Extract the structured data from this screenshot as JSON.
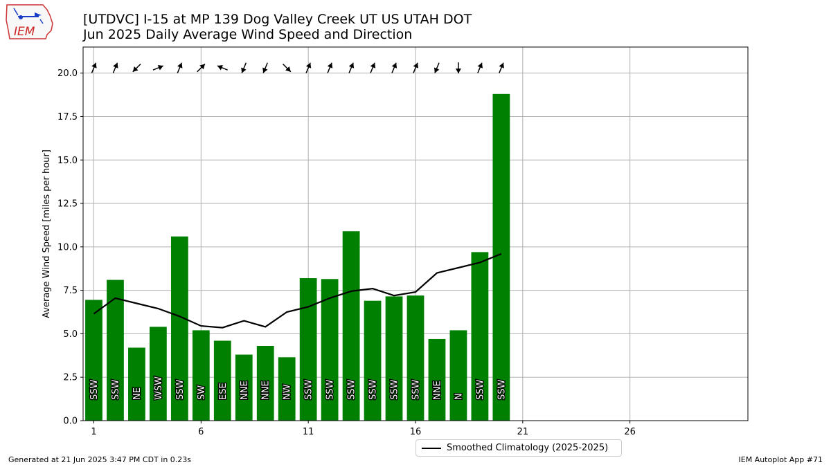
{
  "title_line1": "[UTDVC] I-15 at MP 139 Dog Valley Creek  UT US UTAH DOT",
  "title_line2": "Jun 2025 Daily Average Wind Speed and Direction",
  "logo_text": "IEM",
  "footer_left": "Generated at 21 Jun 2025 3:47 PM CDT in 0.23s",
  "footer_right": "IEM Autoplot App #71",
  "legend_label": "Smoothed Climatology (2025-2025)",
  "colors": {
    "bar": "#008000",
    "line": "#000000",
    "grid": "#b0b0b0"
  },
  "chart_data": {
    "type": "bar",
    "ylabel": "Average Wind Speed [miles per hour]",
    "xlabel": "",
    "xlim": [
      0.5,
      31.5
    ],
    "ylim": [
      0,
      21.5
    ],
    "xticks": [
      1,
      6,
      11,
      16,
      21,
      26
    ],
    "yticks": [
      0.0,
      2.5,
      5.0,
      7.5,
      10.0,
      12.5,
      15.0,
      17.5,
      20.0
    ],
    "grid": true,
    "legend_position": "lower-center",
    "days": [
      1,
      2,
      3,
      4,
      5,
      6,
      7,
      8,
      9,
      10,
      11,
      12,
      13,
      14,
      15,
      16,
      17,
      18,
      19,
      20
    ],
    "speed": [
      6.95,
      8.1,
      4.2,
      5.4,
      10.6,
      5.2,
      4.6,
      3.8,
      4.3,
      3.65,
      8.2,
      8.15,
      10.9,
      6.9,
      7.15,
      7.2,
      4.7,
      5.2,
      9.7,
      18.8
    ],
    "direction": [
      "SSW",
      "SSW",
      "NE",
      "WSW",
      "SSW",
      "SW",
      "ESE",
      "NNE",
      "NNE",
      "NW",
      "SSW",
      "SSW",
      "SSW",
      "SSW",
      "SSW",
      "SSW",
      "NNE",
      "N",
      "SSW",
      "SSW"
    ],
    "series": [
      {
        "name": "Smoothed Climatology (2025-2025)",
        "type": "line",
        "values": [
          6.15,
          7.05,
          6.75,
          6.45,
          6.0,
          5.45,
          5.35,
          5.75,
          5.4,
          6.25,
          6.55,
          7.05,
          7.45,
          7.6,
          7.2,
          7.4,
          8.5,
          8.8,
          9.1,
          9.6
        ]
      }
    ]
  }
}
